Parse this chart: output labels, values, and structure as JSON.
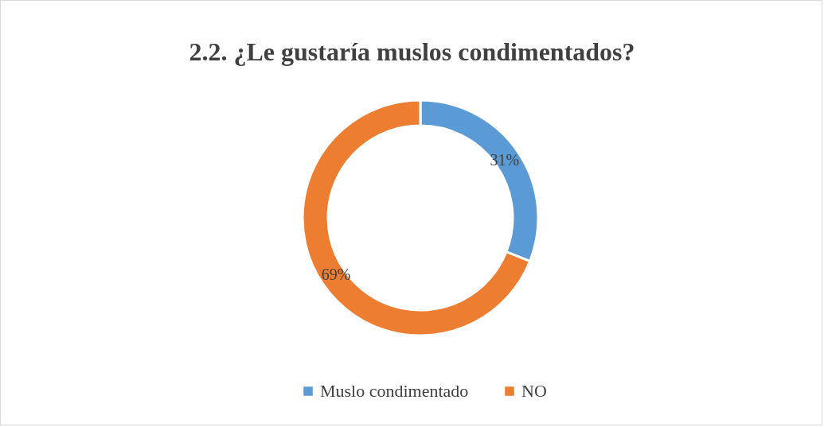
{
  "chart_data": {
    "type": "donut",
    "title": "2.2. ¿Le gustaría muslos condimentados?",
    "categories": [
      "Muslo condimentado",
      "NO"
    ],
    "values": [
      31,
      69
    ],
    "colors": [
      "#5b9bd5",
      "#ed7d31"
    ],
    "value_labels": [
      "31%",
      "69%"
    ],
    "legend": "bottom"
  }
}
